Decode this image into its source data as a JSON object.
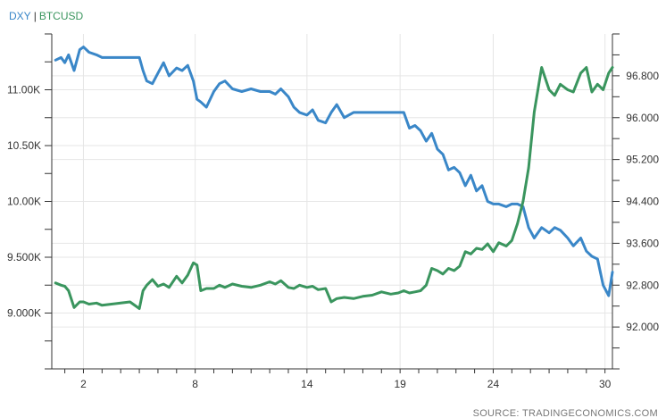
{
  "colors": {
    "dxy": "#3a87c8",
    "btcusd": "#3a955e",
    "grid": "#e6e6e6",
    "axis": "#333333"
  },
  "legend": {
    "dxy": "DXY",
    "separator": "|",
    "btcusd": "BTCUSD"
  },
  "source": "SOURCE: TRADINGECONOMICS.COM",
  "chart_data": {
    "type": "line",
    "title": "",
    "legend_position": "top-left",
    "grid": true,
    "x_ticks": [
      "2",
      "8",
      "14",
      "19",
      "24",
      "30"
    ],
    "xlim": [
      0.3,
      30.4
    ],
    "x_tick_values": [
      2,
      8,
      14,
      19,
      24,
      30
    ],
    "y_left": {
      "series": "BTCUSD",
      "ticks": [
        "9.000K",
        "9.500K",
        "10.00K",
        "10.50K",
        "11.00K"
      ],
      "tick_values": [
        9000,
        9500,
        10000,
        10500,
        11000
      ],
      "ylim": [
        8500,
        11500
      ]
    },
    "y_right": {
      "series": "DXY",
      "ticks": [
        "92.000",
        "92.800",
        "93.600",
        "94.400",
        "95.200",
        "96.000",
        "96.800"
      ],
      "tick_values": [
        92.0,
        92.8,
        93.6,
        94.4,
        95.2,
        96.0,
        96.8
      ],
      "ylim": [
        91.2,
        97.6
      ]
    },
    "series": [
      {
        "name": "DXY",
        "axis": "right",
        "x": [
          0.5,
          0.8,
          1.0,
          1.2,
          1.5,
          1.8,
          2.0,
          2.3,
          2.7,
          3.0,
          3.5,
          4.0,
          4.5,
          5.0,
          5.2,
          5.4,
          5.7,
          6.0,
          6.3,
          6.6,
          7.0,
          7.3,
          7.6,
          7.9,
          8.1,
          8.3,
          8.6,
          9.0,
          9.3,
          9.6,
          10.0,
          10.5,
          11.0,
          11.5,
          12.0,
          12.3,
          12.6,
          13.0,
          13.3,
          13.6,
          14.0,
          14.3,
          14.6,
          15.0,
          15.3,
          15.6,
          16.0,
          16.5,
          17.0,
          17.5,
          18.0,
          18.5,
          18.9,
          19.2,
          19.5,
          19.8,
          20.1,
          20.4,
          20.7,
          21.0,
          21.3,
          21.6,
          21.9,
          22.2,
          22.5,
          22.8,
          23.1,
          23.4,
          23.7,
          24.0,
          24.3,
          24.7,
          25.0,
          25.3,
          25.6,
          25.9,
          26.2,
          26.6,
          27.0,
          27.3,
          27.6,
          28.0,
          28.3,
          28.7,
          29.0,
          29.3,
          29.6,
          29.9,
          30.2,
          30.4
        ],
        "values": [
          97.1,
          97.15,
          97.05,
          97.2,
          96.9,
          97.3,
          97.35,
          97.25,
          97.2,
          97.15,
          97.15,
          97.15,
          97.15,
          97.15,
          96.9,
          96.7,
          96.65,
          96.85,
          97.05,
          96.8,
          96.95,
          96.9,
          97.0,
          96.7,
          96.35,
          96.3,
          96.2,
          96.5,
          96.65,
          96.7,
          96.55,
          96.5,
          96.55,
          96.5,
          96.5,
          96.45,
          96.55,
          96.4,
          96.2,
          96.1,
          96.05,
          96.15,
          95.95,
          95.9,
          96.1,
          96.25,
          96.0,
          96.1,
          96.1,
          96.1,
          96.1,
          96.1,
          96.1,
          96.1,
          95.8,
          95.85,
          95.75,
          95.55,
          95.7,
          95.4,
          95.3,
          95.0,
          95.05,
          94.95,
          94.7,
          94.9,
          94.6,
          94.7,
          94.4,
          94.35,
          94.35,
          94.3,
          94.35,
          94.35,
          94.3,
          93.9,
          93.7,
          93.9,
          93.8,
          93.9,
          93.85,
          93.7,
          93.55,
          93.7,
          93.45,
          93.35,
          93.3,
          92.8,
          92.6,
          93.05
        ]
      },
      {
        "name": "BTCUSD",
        "axis": "left",
        "x": [
          0.5,
          0.8,
          1.0,
          1.2,
          1.5,
          1.8,
          2.0,
          2.3,
          2.7,
          3.0,
          3.5,
          4.0,
          4.5,
          5.0,
          5.2,
          5.4,
          5.7,
          6.0,
          6.3,
          6.6,
          7.0,
          7.3,
          7.6,
          7.9,
          8.1,
          8.3,
          8.6,
          9.0,
          9.3,
          9.6,
          10.0,
          10.5,
          11.0,
          11.5,
          12.0,
          12.3,
          12.6,
          13.0,
          13.3,
          13.6,
          14.0,
          14.3,
          14.6,
          15.0,
          15.3,
          15.6,
          16.0,
          16.5,
          17.0,
          17.5,
          18.0,
          18.5,
          18.9,
          19.2,
          19.5,
          19.8,
          20.1,
          20.4,
          20.7,
          21.0,
          21.3,
          21.6,
          21.9,
          22.2,
          22.5,
          22.8,
          23.1,
          23.4,
          23.7,
          24.0,
          24.3,
          24.7,
          25.0,
          25.3,
          25.6,
          25.9,
          26.2,
          26.6,
          27.0,
          27.3,
          27.6,
          28.0,
          28.3,
          28.7,
          29.0,
          29.3,
          29.6,
          29.9,
          30.2,
          30.4
        ],
        "values": [
          9270,
          9250,
          9240,
          9200,
          9050,
          9100,
          9100,
          9080,
          9090,
          9070,
          9080,
          9090,
          9100,
          9040,
          9200,
          9250,
          9300,
          9240,
          9260,
          9230,
          9330,
          9270,
          9340,
          9450,
          9430,
          9200,
          9220,
          9220,
          9250,
          9230,
          9260,
          9240,
          9230,
          9250,
          9280,
          9260,
          9290,
          9230,
          9220,
          9250,
          9230,
          9240,
          9210,
          9220,
          9100,
          9130,
          9140,
          9130,
          9150,
          9160,
          9190,
          9170,
          9180,
          9200,
          9180,
          9190,
          9200,
          9250,
          9400,
          9380,
          9350,
          9400,
          9380,
          9420,
          9550,
          9530,
          9580,
          9570,
          9620,
          9550,
          9630,
          9600,
          9650,
          9800,
          10000,
          10300,
          10800,
          11200,
          11000,
          10950,
          11050,
          11000,
          10980,
          11150,
          11200,
          10980,
          11050,
          11000,
          11150,
          11200
        ]
      }
    ]
  }
}
